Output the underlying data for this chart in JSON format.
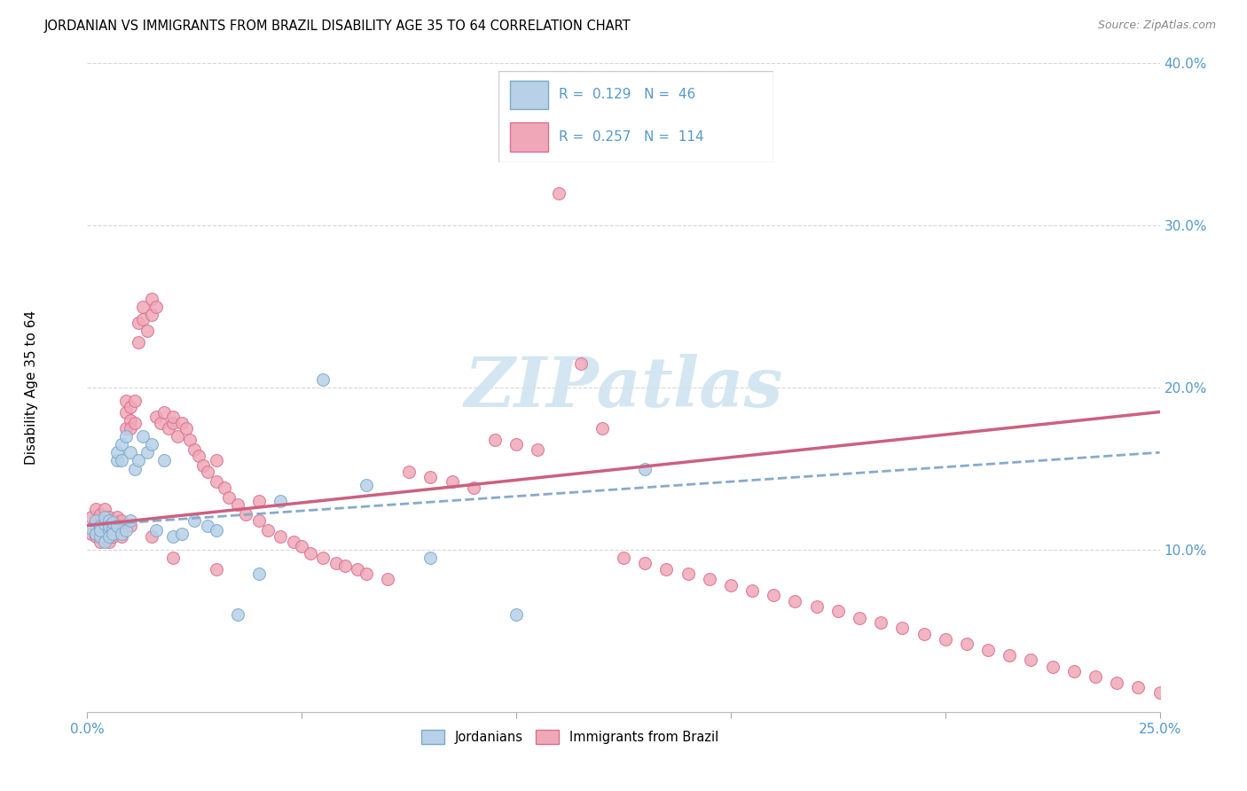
{
  "title": "JORDANIAN VS IMMIGRANTS FROM BRAZIL DISABILITY AGE 35 TO 64 CORRELATION CHART",
  "source": "Source: ZipAtlas.com",
  "ylabel": "Disability Age 35 to 64",
  "xlim": [
    0.0,
    0.25
  ],
  "ylim": [
    0.0,
    0.4
  ],
  "xticks": [
    0.0,
    0.05,
    0.1,
    0.15,
    0.2,
    0.25
  ],
  "xticklabels": [
    "0.0%",
    "",
    "",
    "",
    "",
    "25.0%"
  ],
  "yticks": [
    0.0,
    0.1,
    0.2,
    0.3,
    0.4
  ],
  "yticklabels": [
    "",
    "10.0%",
    "20.0%",
    "30.0%",
    "40.0%"
  ],
  "color_jordanian_fill": "#b8d0e8",
  "color_jordanian_edge": "#7aaac8",
  "color_brazil_fill": "#f0a8b8",
  "color_brazil_edge": "#d87090",
  "color_line_jordanian": "#88aacc",
  "color_line_brazil": "#cc6080",
  "color_tick_label": "#5599cc",
  "watermark_color": "#d0e4f0",
  "jordanian_x": [
    0.001,
    0.002,
    0.002,
    0.003,
    0.003,
    0.003,
    0.004,
    0.004,
    0.004,
    0.005,
    0.005,
    0.005,
    0.005,
    0.006,
    0.006,
    0.006,
    0.007,
    0.007,
    0.007,
    0.008,
    0.008,
    0.008,
    0.009,
    0.009,
    0.01,
    0.01,
    0.011,
    0.012,
    0.013,
    0.014,
    0.015,
    0.016,
    0.018,
    0.02,
    0.022,
    0.025,
    0.028,
    0.03,
    0.035,
    0.04,
    0.045,
    0.055,
    0.065,
    0.08,
    0.1,
    0.13
  ],
  "jordanian_y": [
    0.113,
    0.11,
    0.118,
    0.108,
    0.115,
    0.112,
    0.116,
    0.105,
    0.12,
    0.112,
    0.118,
    0.108,
    0.115,
    0.113,
    0.11,
    0.117,
    0.155,
    0.16,
    0.115,
    0.11,
    0.165,
    0.155,
    0.17,
    0.112,
    0.118,
    0.16,
    0.15,
    0.155,
    0.17,
    0.16,
    0.165,
    0.112,
    0.155,
    0.108,
    0.11,
    0.118,
    0.115,
    0.112,
    0.06,
    0.085,
    0.13,
    0.205,
    0.14,
    0.095,
    0.06,
    0.15
  ],
  "brazil_x": [
    0.001,
    0.001,
    0.002,
    0.002,
    0.002,
    0.003,
    0.003,
    0.003,
    0.003,
    0.004,
    0.004,
    0.004,
    0.005,
    0.005,
    0.005,
    0.005,
    0.006,
    0.006,
    0.006,
    0.007,
    0.007,
    0.007,
    0.008,
    0.008,
    0.008,
    0.009,
    0.009,
    0.009,
    0.01,
    0.01,
    0.01,
    0.011,
    0.011,
    0.012,
    0.012,
    0.013,
    0.013,
    0.014,
    0.015,
    0.015,
    0.016,
    0.016,
    0.017,
    0.018,
    0.019,
    0.02,
    0.02,
    0.021,
    0.022,
    0.023,
    0.024,
    0.025,
    0.026,
    0.027,
    0.028,
    0.03,
    0.03,
    0.032,
    0.033,
    0.035,
    0.037,
    0.04,
    0.04,
    0.042,
    0.045,
    0.048,
    0.05,
    0.052,
    0.055,
    0.058,
    0.06,
    0.063,
    0.065,
    0.07,
    0.075,
    0.08,
    0.085,
    0.09,
    0.095,
    0.1,
    0.105,
    0.11,
    0.115,
    0.12,
    0.125,
    0.13,
    0.135,
    0.14,
    0.145,
    0.15,
    0.155,
    0.16,
    0.165,
    0.17,
    0.175,
    0.18,
    0.185,
    0.19,
    0.195,
    0.2,
    0.205,
    0.21,
    0.215,
    0.22,
    0.225,
    0.23,
    0.235,
    0.24,
    0.245,
    0.25,
    0.01,
    0.015,
    0.02,
    0.03
  ],
  "brazil_y": [
    0.11,
    0.12,
    0.115,
    0.125,
    0.108,
    0.112,
    0.118,
    0.105,
    0.122,
    0.115,
    0.108,
    0.125,
    0.112,
    0.118,
    0.105,
    0.12,
    0.115,
    0.108,
    0.118,
    0.115,
    0.112,
    0.12,
    0.115,
    0.108,
    0.118,
    0.185,
    0.192,
    0.175,
    0.18,
    0.175,
    0.188,
    0.192,
    0.178,
    0.24,
    0.228,
    0.25,
    0.242,
    0.235,
    0.255,
    0.245,
    0.25,
    0.182,
    0.178,
    0.185,
    0.175,
    0.178,
    0.182,
    0.17,
    0.178,
    0.175,
    0.168,
    0.162,
    0.158,
    0.152,
    0.148,
    0.142,
    0.155,
    0.138,
    0.132,
    0.128,
    0.122,
    0.118,
    0.13,
    0.112,
    0.108,
    0.105,
    0.102,
    0.098,
    0.095,
    0.092,
    0.09,
    0.088,
    0.085,
    0.082,
    0.148,
    0.145,
    0.142,
    0.138,
    0.168,
    0.165,
    0.162,
    0.32,
    0.215,
    0.175,
    0.095,
    0.092,
    0.088,
    0.085,
    0.082,
    0.078,
    0.075,
    0.072,
    0.068,
    0.065,
    0.062,
    0.058,
    0.055,
    0.052,
    0.048,
    0.045,
    0.042,
    0.038,
    0.035,
    0.032,
    0.028,
    0.025,
    0.022,
    0.018,
    0.015,
    0.012,
    0.115,
    0.108,
    0.095,
    0.088
  ]
}
